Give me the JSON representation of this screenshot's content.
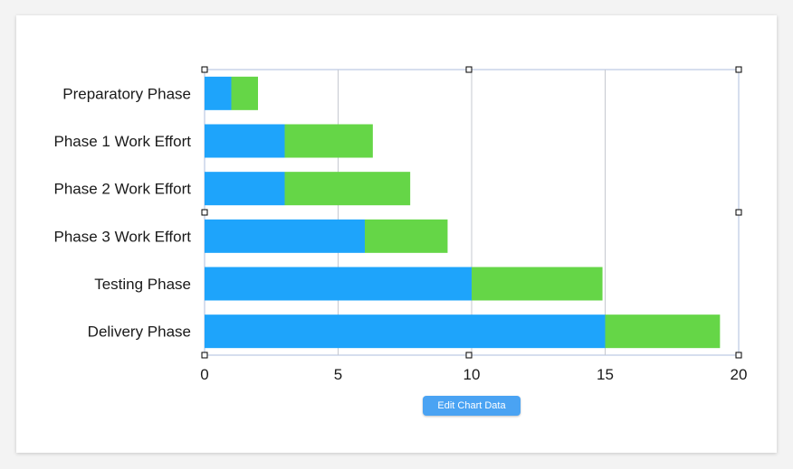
{
  "chart_data": {
    "type": "bar",
    "orientation": "horizontal",
    "stacked": true,
    "categories": [
      "Preparatory Phase",
      "Phase 1 Work Effort",
      "Phase 2 Work Effort",
      "Phase 3 Work Effort",
      "Testing Phase",
      "Delivery Phase"
    ],
    "series": [
      {
        "values": [
          1,
          3,
          3,
          6,
          10,
          15
        ],
        "color": "#1ea4fb"
      },
      {
        "values": [
          1,
          3.3,
          4.7,
          3.1,
          4.9,
          4.3
        ],
        "color": "#65d647"
      }
    ],
    "xlim": [
      0,
      20
    ],
    "xticks": [
      "0",
      "5",
      "10",
      "15",
      "20"
    ],
    "grid": true,
    "title": "",
    "xlabel": "",
    "ylabel": ""
  },
  "edit_button": {
    "label": "Edit Chart Data"
  }
}
